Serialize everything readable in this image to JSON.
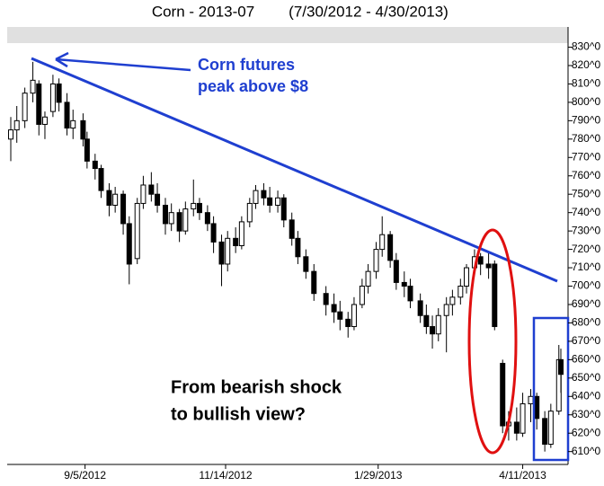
{
  "chart_data": {
    "type": "candlestick",
    "title": "Corn - 2013-07",
    "subtitle": "(7/30/2012 - 4/30/2013)",
    "annotations": [
      "Corn futures",
      "peak above $8",
      "From bearish shock",
      "to bullish view?"
    ],
    "x": [
      "7/30/2012",
      "8/2/2012",
      "8/6/2012",
      "8/10/2012",
      "8/13/2012",
      "8/16/2012",
      "8/20/2012",
      "8/23/2012",
      "8/27/2012",
      "8/30/2012",
      "9/4/2012",
      "9/6/2012",
      "9/10/2012",
      "9/13/2012",
      "9/17/2012",
      "9/20/2012",
      "9/24/2012",
      "9/27/2012",
      "10/1/2012",
      "10/4/2012",
      "10/8/2012",
      "10/11/2012",
      "10/15/2012",
      "10/18/2012",
      "10/22/2012",
      "10/25/2012",
      "10/29/2012",
      "11/1/2012",
      "11/5/2012",
      "11/8/2012",
      "11/12/2012",
      "11/15/2012",
      "11/19/2012",
      "11/22/2012",
      "11/26/2012",
      "11/29/2012",
      "12/3/2012",
      "12/6/2012",
      "12/10/2012",
      "12/13/2012",
      "12/17/2012",
      "12/20/2012",
      "12/24/2012",
      "12/28/2012",
      "1/3/2013",
      "1/7/2013",
      "1/10/2013",
      "1/14/2013",
      "1/17/2013",
      "1/21/2013",
      "1/24/2013",
      "1/28/2013",
      "1/31/2013",
      "2/4/2013",
      "2/7/2013",
      "2/11/2013",
      "2/14/2013",
      "2/19/2013",
      "2/22/2013",
      "2/25/2013",
      "2/28/2013",
      "3/4/2013",
      "3/7/2013",
      "3/11/2013",
      "3/14/2013",
      "3/18/2013",
      "3/21/2013",
      "3/25/2013",
      "3/28/2013",
      "4/1/2013",
      "4/4/2013",
      "4/8/2013",
      "4/11/2013",
      "4/15/2013",
      "4/18/2013",
      "4/22/2013",
      "4/25/2013",
      "4/29/2013",
      "4/30/2013"
    ],
    "open": [
      780,
      785,
      790,
      805,
      810,
      788,
      795,
      810,
      800,
      786,
      790,
      780,
      768,
      764,
      752,
      744,
      750,
      734,
      715,
      745,
      755,
      750,
      744,
      734,
      740,
      730,
      742,
      745,
      740,
      734,
      724,
      712,
      726,
      722,
      735,
      745,
      752,
      748,
      744,
      748,
      736,
      726,
      716,
      708,
      696,
      690,
      686,
      682,
      678,
      690,
      700,
      708,
      720,
      728,
      714,
      702,
      700,
      692,
      684,
      678,
      674,
      684,
      690,
      694,
      700,
      710,
      716,
      712,
      712,
      658,
      624,
      626,
      620,
      636,
      640,
      628,
      614,
      632,
      660
    ],
    "high": [
      792,
      798,
      808,
      822,
      812,
      795,
      815,
      813,
      805,
      796,
      794,
      784,
      772,
      766,
      756,
      754,
      752,
      738,
      748,
      760,
      762,
      756,
      748,
      745,
      742,
      746,
      758,
      748,
      744,
      738,
      728,
      730,
      732,
      738,
      748,
      755,
      756,
      754,
      752,
      750,
      740,
      730,
      720,
      712,
      700,
      696,
      692,
      686,
      694,
      704,
      712,
      724,
      738,
      730,
      718,
      708,
      704,
      696,
      690,
      684,
      688,
      694,
      698,
      704,
      712,
      720,
      718,
      718,
      714,
      660,
      632,
      634,
      642,
      644,
      642,
      632,
      636,
      668,
      666
    ],
    "low": [
      768,
      778,
      786,
      800,
      782,
      780,
      792,
      795,
      782,
      780,
      776,
      764,
      758,
      748,
      738,
      740,
      728,
      701,
      712,
      742,
      746,
      740,
      728,
      730,
      724,
      728,
      738,
      736,
      730,
      718,
      700,
      708,
      718,
      720,
      732,
      742,
      744,
      740,
      740,
      732,
      722,
      712,
      704,
      692,
      684,
      680,
      676,
      672,
      676,
      688,
      696,
      704,
      716,
      710,
      698,
      694,
      688,
      680,
      674,
      666,
      670,
      664,
      684,
      690,
      696,
      706,
      706,
      704,
      676,
      620,
      616,
      616,
      618,
      626,
      622,
      610,
      612,
      630,
      642
    ],
    "close": [
      785,
      790,
      805,
      812,
      788,
      792,
      810,
      800,
      786,
      790,
      780,
      768,
      764,
      752,
      744,
      750,
      734,
      712,
      745,
      755,
      750,
      744,
      734,
      740,
      730,
      742,
      745,
      740,
      734,
      724,
      712,
      726,
      722,
      735,
      745,
      752,
      748,
      744,
      748,
      736,
      726,
      716,
      708,
      696,
      690,
      686,
      682,
      678,
      690,
      700,
      708,
      720,
      728,
      714,
      702,
      700,
      692,
      684,
      678,
      674,
      684,
      690,
      694,
      700,
      710,
      716,
      712,
      710,
      678,
      624,
      626,
      620,
      636,
      640,
      628,
      614,
      632,
      660,
      652
    ],
    "up_color": "#ffffff",
    "down_color": "#000000",
    "xlim": [
      "7/30/2012",
      "4/30/2013"
    ],
    "xticks": [
      "9/5/2012",
      "11/14/2012",
      "1/29/2013",
      "4/11/2013"
    ],
    "ylim": [
      603,
      841
    ],
    "yticks": [
      {
        "value": 610,
        "label": "610^0"
      },
      {
        "value": 620,
        "label": "620^0"
      },
      {
        "value": 630,
        "label": "630^0"
      },
      {
        "value": 640,
        "label": "640^0"
      },
      {
        "value": 650,
        "label": "650^0"
      },
      {
        "value": 660,
        "label": "660^0"
      },
      {
        "value": 670,
        "label": "670^0"
      },
      {
        "value": 680,
        "label": "680^0"
      },
      {
        "value": 690,
        "label": "690^0"
      },
      {
        "value": 700,
        "label": "700^0"
      },
      {
        "value": 710,
        "label": "710^0"
      },
      {
        "value": 720,
        "label": "720^0"
      },
      {
        "value": 730,
        "label": "730^0"
      },
      {
        "value": 740,
        "label": "740^0"
      },
      {
        "value": 750,
        "label": "750^0"
      },
      {
        "value": 760,
        "label": "760^0"
      },
      {
        "value": 770,
        "label": "770^0"
      },
      {
        "value": 780,
        "label": "780^0"
      },
      {
        "value": 790,
        "label": "790^0"
      },
      {
        "value": 800,
        "label": "800^0"
      },
      {
        "value": 810,
        "label": "810^0"
      },
      {
        "value": 820,
        "label": "820^0"
      },
      {
        "value": 830,
        "label": "830^0"
      }
    ]
  }
}
